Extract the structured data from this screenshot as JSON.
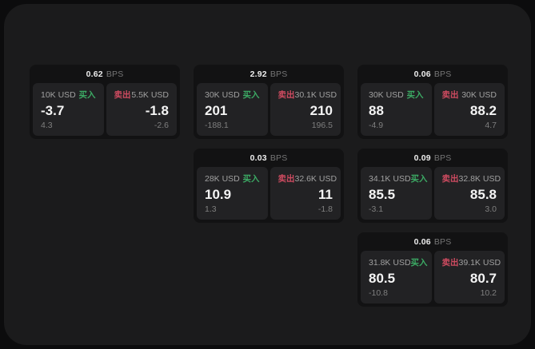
{
  "labels": {
    "bps_unit": "BPS",
    "buy": "买入",
    "sell": "卖出"
  },
  "colors": {
    "background": "#0c0c0d",
    "surface": "#1b1b1c",
    "card": "#121213",
    "panel": "#222224",
    "buy_green": "#3caa64",
    "sell_red": "#ce4b60"
  },
  "cards": [
    {
      "bps": "0.62",
      "grid": {
        "col": 1,
        "row": 1
      },
      "buy": {
        "size": "10K USD",
        "main": "-3.7",
        "sub": "4.3"
      },
      "sell": {
        "size": "5.5K USD",
        "main": "-1.8",
        "sub": "-2.6"
      }
    },
    {
      "bps": "2.92",
      "grid": {
        "col": 2,
        "row": 1
      },
      "buy": {
        "size": "30K USD",
        "main": "201",
        "sub": "-188.1"
      },
      "sell": {
        "size": "30.1K USD",
        "main": "210",
        "sub": "196.5"
      }
    },
    {
      "bps": "0.06",
      "grid": {
        "col": 3,
        "row": 1
      },
      "buy": {
        "size": "30K USD",
        "main": "88",
        "sub": "-4.9"
      },
      "sell": {
        "size": "30K USD",
        "main": "88.2",
        "sub": "4.7"
      }
    },
    {
      "bps": "0.03",
      "grid": {
        "col": 2,
        "row": 2
      },
      "buy": {
        "size": "28K USD",
        "main": "10.9",
        "sub": "1.3"
      },
      "sell": {
        "size": "32.6K USD",
        "main": "11",
        "sub": "-1.8"
      }
    },
    {
      "bps": "0.09",
      "grid": {
        "col": 3,
        "row": 2
      },
      "buy": {
        "size": "34.1K USD",
        "main": "85.5",
        "sub": "-3.1"
      },
      "sell": {
        "size": "32.8K USD",
        "main": "85.8",
        "sub": "3.0"
      }
    },
    {
      "bps": "0.06",
      "grid": {
        "col": 3,
        "row": 3
      },
      "buy": {
        "size": "31.8K USD",
        "main": "80.5",
        "sub": "-10.8"
      },
      "sell": {
        "size": "39.1K USD",
        "main": "80.7",
        "sub": "10.2"
      }
    }
  ]
}
